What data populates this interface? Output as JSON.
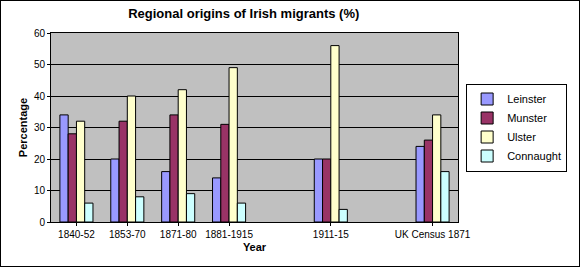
{
  "chart_data": {
    "type": "bar",
    "title": "Regional origins of Irish migrants (%)",
    "x_label": "Year",
    "y_label": "Percentage",
    "categories": [
      "1840-52",
      "1853-70",
      "1871-80",
      "1881-1915",
      null,
      "1911-15",
      null,
      "UK Census 1871"
    ],
    "series": [
      {
        "name": "Leinster",
        "color": "#9999FF",
        "values": [
          34,
          20,
          16,
          14,
          null,
          20,
          null,
          24
        ]
      },
      {
        "name": "Munster",
        "color": "#993366",
        "values": [
          28,
          32,
          34,
          31,
          null,
          20,
          null,
          26
        ]
      },
      {
        "name": "Ulster",
        "color": "#FFFFCC",
        "values": [
          32,
          40,
          42,
          49,
          null,
          56,
          null,
          34
        ]
      },
      {
        "name": "Connaught",
        "color": "#CCFFFF",
        "values": [
          6,
          8,
          9,
          6,
          null,
          4,
          null,
          16
        ]
      }
    ],
    "ylim": [
      0,
      60
    ],
    "yticks": [
      0,
      10,
      20,
      30,
      40,
      50,
      60
    ],
    "grid": true,
    "legend": "right"
  }
}
